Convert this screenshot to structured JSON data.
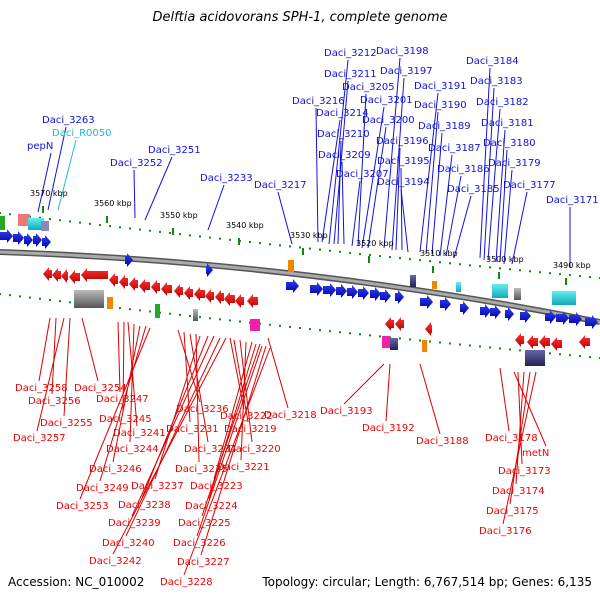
{
  "title": "Delftia acidovorans SPH-1, complete genome",
  "footer": {
    "accession": "Accession: NC_010002",
    "topology": "Topology: circular; Length: 6,767,514 bp; Genes: 6,135"
  },
  "colors": {
    "forward": "#1111dd",
    "reverse": "#ee0000",
    "rna": "#22bbcc",
    "backbone": "#888888",
    "tick": "#118811"
  },
  "scale": [
    "3570 kbp",
    "3560 kbp",
    "3550 kbp",
    "3540 kbp",
    "3530 kbp",
    "3520 kbp",
    "3510 kbp",
    "3500 kbp",
    "3490 kbp"
  ],
  "top_labels": [
    "pepN",
    "Daci_3263",
    "Daci_R0050",
    "Daci_3252",
    "Daci_3251",
    "Daci_3233",
    "Daci_3217",
    "Daci_3216",
    "Daci_3214",
    "Daci_3212",
    "Daci_3211",
    "Daci_3210",
    "Daci_3209",
    "Daci_3207",
    "Daci_3205",
    "Daci_3201",
    "Daci_3200",
    "Daci_3198",
    "Daci_3197",
    "Daci_3196",
    "Daci_3195",
    "Daci_3194",
    "Daci_3191",
    "Daci_3190",
    "Daci_3189",
    "Daci_3187",
    "Daci_3186",
    "Daci_3185",
    "Daci_3184",
    "Daci_3183",
    "Daci_3182",
    "Daci_3181",
    "Daci_3180",
    "Daci_3179",
    "Daci_3177",
    "Daci_3171"
  ],
  "bottom_labels": [
    "Daci_3258",
    "Daci_3256",
    "Daci_3254",
    "Daci_3257",
    "Daci_3255",
    "Daci_3247",
    "Daci_3245",
    "Daci_3241",
    "Daci_3244",
    "Daci_3246",
    "Daci_3249",
    "Daci_3253",
    "Daci_3236",
    "Daci_3231",
    "Daci_3234",
    "Daci_3235",
    "Daci_3237",
    "Daci_3238",
    "Daci_3239",
    "Daci_3240",
    "Daci_3242",
    "Daci_3222",
    "Daci_3219",
    "Daci_3220",
    "Daci_3221",
    "Daci_3223",
    "Daci_3224",
    "Daci_3225",
    "Daci_3226",
    "Daci_3227",
    "Daci_3228",
    "Daci_3218",
    "Daci_3193",
    "Daci_3192",
    "Daci_3188",
    "Daci_3178",
    "metN",
    "Daci_3173",
    "Daci_3174",
    "Daci_3175",
    "Daci_3176"
  ]
}
